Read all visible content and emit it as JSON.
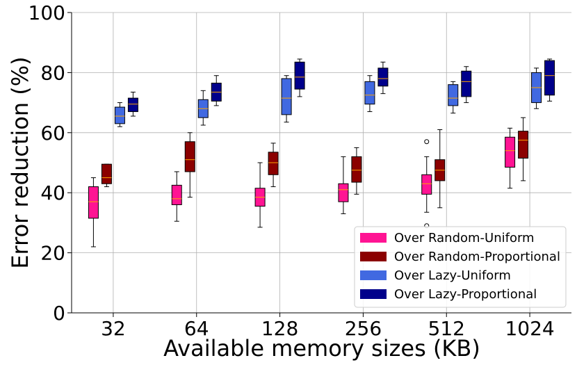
{
  "chart_data": {
    "type": "box",
    "xlabel": "Available memory sizes (KB)",
    "ylabel": "Error reduction (%)",
    "ylim": [
      0,
      100
    ],
    "yticks": [
      0,
      20,
      40,
      60,
      80,
      100
    ],
    "categories": [
      "32",
      "64",
      "128",
      "256",
      "512",
      "1024"
    ],
    "grid": true,
    "legend_position": "lower-right",
    "series": [
      {
        "name": "Over Random-Uniform",
        "color": "#ff1493",
        "boxes": [
          {
            "whislo": 22,
            "q1": 31.5,
            "med": 37,
            "q3": 42,
            "whishi": 45,
            "fliers": []
          },
          {
            "whislo": 30.5,
            "q1": 36,
            "med": 38,
            "q3": 42.5,
            "whishi": 47,
            "fliers": []
          },
          {
            "whislo": 28.5,
            "q1": 35.5,
            "med": 38.5,
            "q3": 41.5,
            "whishi": 50,
            "fliers": []
          },
          {
            "whislo": 33,
            "q1": 37,
            "med": 41,
            "q3": 43,
            "whishi": 52,
            "fliers": []
          },
          {
            "whislo": 33.5,
            "q1": 39.5,
            "med": 43,
            "q3": 46,
            "whishi": 52,
            "fliers": [
              57,
              29
            ]
          },
          {
            "whislo": 41.5,
            "q1": 48.5,
            "med": 54,
            "q3": 58.5,
            "whishi": 61.5,
            "fliers": []
          }
        ]
      },
      {
        "name": "Over Random-Proportional",
        "color": "#8b0000",
        "boxes": [
          {
            "whislo": 42,
            "q1": 43,
            "med": 45,
            "q3": 49.5,
            "whishi": 49.5,
            "fliers": []
          },
          {
            "whislo": 38.5,
            "q1": 47,
            "med": 51,
            "q3": 57,
            "whishi": 60,
            "fliers": []
          },
          {
            "whislo": 42,
            "q1": 46,
            "med": 50,
            "q3": 53.5,
            "whishi": 56.5,
            "fliers": []
          },
          {
            "whislo": 39.5,
            "q1": 43.5,
            "med": 47.5,
            "q3": 52,
            "whishi": 55,
            "fliers": []
          },
          {
            "whislo": 35,
            "q1": 44,
            "med": 47.5,
            "q3": 51,
            "whishi": 61,
            "fliers": []
          },
          {
            "whislo": 44,
            "q1": 51.5,
            "med": 57.5,
            "q3": 60.5,
            "whishi": 65,
            "fliers": []
          }
        ]
      },
      {
        "name": "Over Lazy-Uniform",
        "color": "#4169e1",
        "boxes": [
          {
            "whislo": 62,
            "q1": 63,
            "med": 65.5,
            "q3": 68.5,
            "whishi": 70,
            "fliers": []
          },
          {
            "whislo": 62.5,
            "q1": 65,
            "med": 68,
            "q3": 71,
            "whishi": 74,
            "fliers": []
          },
          {
            "whislo": 63.5,
            "q1": 66,
            "med": 71.5,
            "q3": 78,
            "whishi": 79,
            "fliers": []
          },
          {
            "whislo": 67,
            "q1": 69.5,
            "med": 72.5,
            "q3": 77,
            "whishi": 79,
            "fliers": []
          },
          {
            "whislo": 66.5,
            "q1": 69,
            "med": 71.5,
            "q3": 76,
            "whishi": 77,
            "fliers": []
          },
          {
            "whislo": 68,
            "q1": 70,
            "med": 75,
            "q3": 80,
            "whishi": 81.5,
            "fliers": []
          }
        ]
      },
      {
        "name": "Over Lazy-Proportional",
        "color": "#00008b",
        "boxes": [
          {
            "whislo": 65.5,
            "q1": 67,
            "med": 69.5,
            "q3": 71.5,
            "whishi": 73.5,
            "fliers": []
          },
          {
            "whislo": 69,
            "q1": 70.5,
            "med": 73.5,
            "q3": 76.5,
            "whishi": 79,
            "fliers": []
          },
          {
            "whislo": 72,
            "q1": 74.5,
            "med": 78.5,
            "q3": 83.5,
            "whishi": 84.5,
            "fliers": []
          },
          {
            "whislo": 73,
            "q1": 75.5,
            "med": 78,
            "q3": 81.5,
            "whishi": 83.5,
            "fliers": []
          },
          {
            "whislo": 70,
            "q1": 72,
            "med": 77,
            "q3": 80.5,
            "whishi": 82,
            "fliers": []
          },
          {
            "whislo": 70.5,
            "q1": 72.5,
            "med": 79,
            "q3": 84,
            "whishi": 84.5,
            "fliers": []
          }
        ]
      }
    ],
    "median_color": "#ffa500"
  }
}
